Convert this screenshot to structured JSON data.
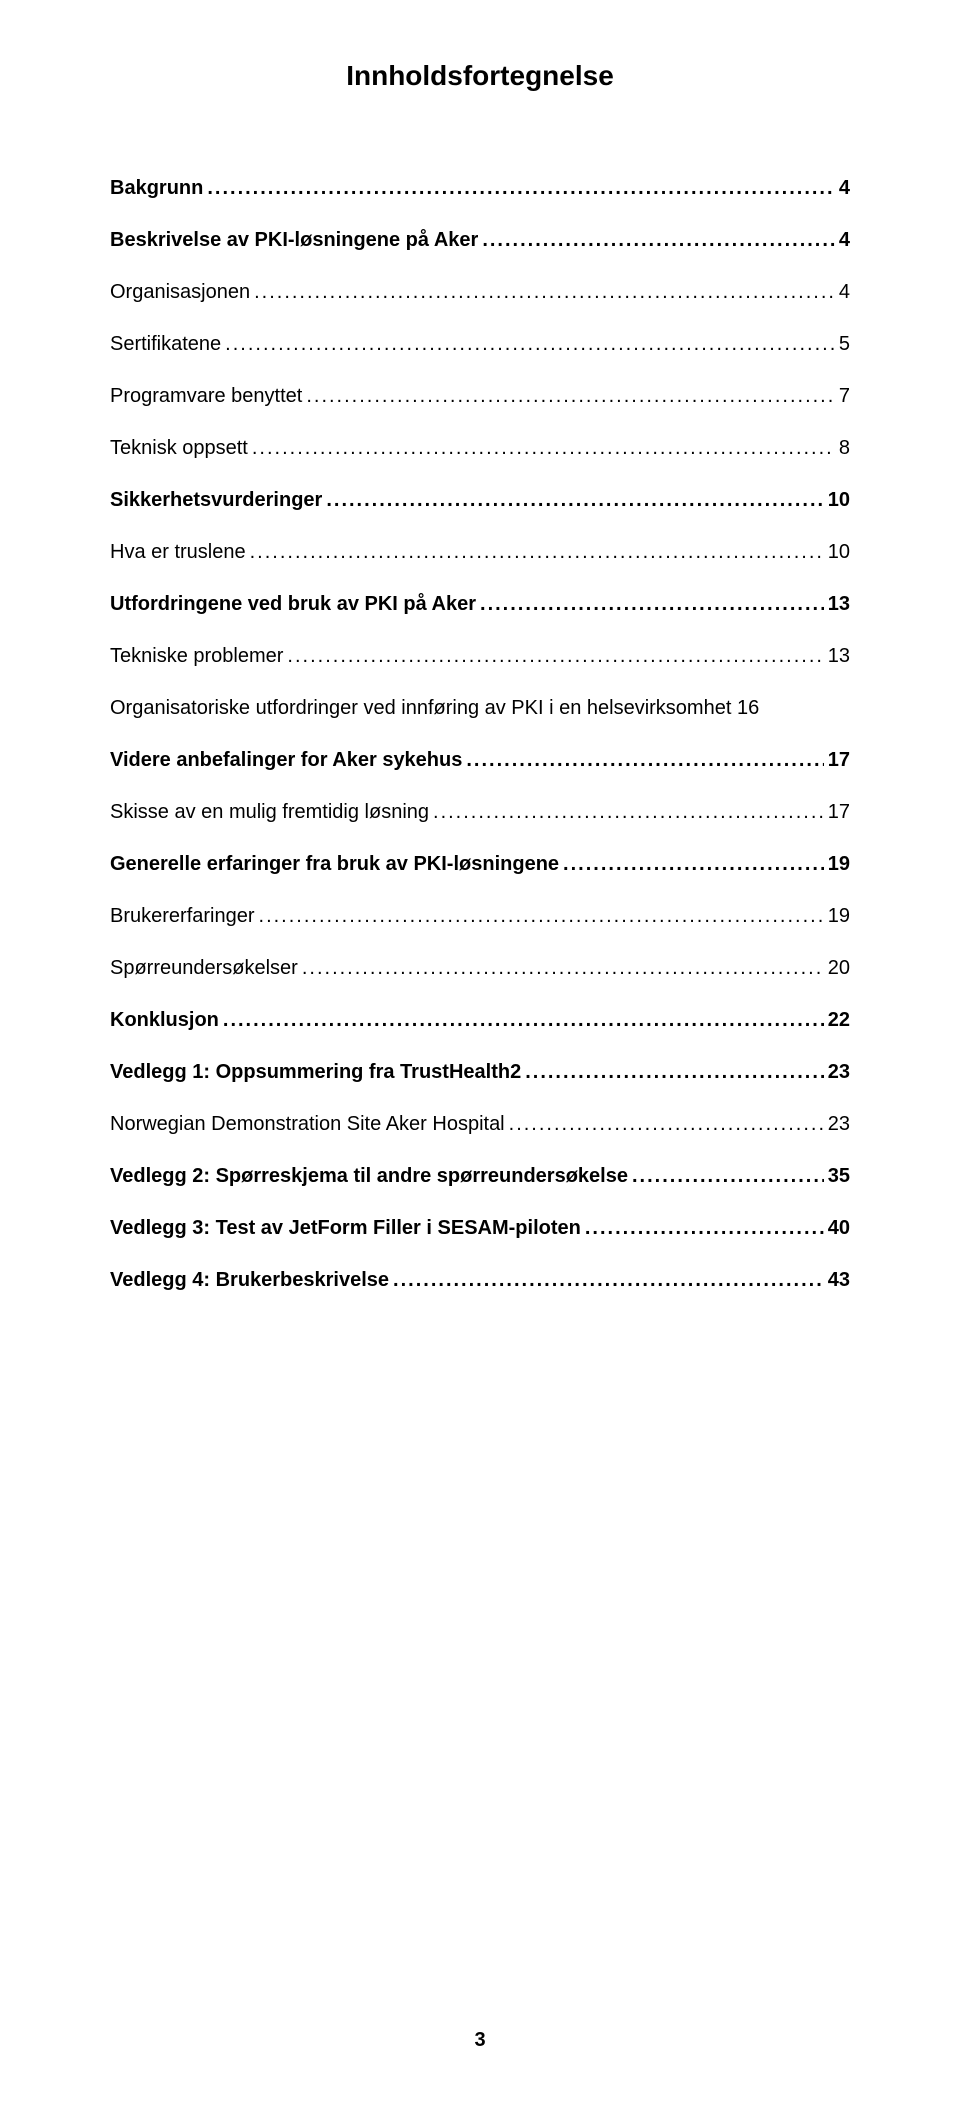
{
  "title": "Innholdsfortegnelse",
  "toc": [
    {
      "label": "Bakgrunn",
      "page": "4",
      "bold": true
    },
    {
      "label": "Beskrivelse av PKI-løsningene på Aker",
      "page": "4",
      "bold": true
    },
    {
      "label": "Organisasjonen",
      "page": "4",
      "bold": false
    },
    {
      "label": "Sertifikatene",
      "page": "5",
      "bold": false
    },
    {
      "label": "Programvare benyttet",
      "page": "7",
      "bold": false
    },
    {
      "label": "Teknisk oppsett",
      "page": "8",
      "bold": false
    },
    {
      "label": "Sikkerhetsvurderinger",
      "page": "10",
      "bold": true
    },
    {
      "label": "Hva er truslene",
      "page": "10",
      "bold": false
    },
    {
      "label": "Utfordringene ved bruk av PKI på Aker",
      "page": "13",
      "bold": true
    },
    {
      "label": "Tekniske problemer",
      "page": "13",
      "bold": false
    },
    {
      "label": "Organisatoriske utfordringer ved innføring av PKI i en helsevirksomhet",
      "page": "16",
      "bold": false,
      "nodots": true
    },
    {
      "label": "Videre anbefalinger for Aker sykehus",
      "page": "17",
      "bold": true
    },
    {
      "label": "Skisse av en mulig fremtidig løsning",
      "page": "17",
      "bold": false
    },
    {
      "label": "Generelle erfaringer fra bruk av PKI-løsningene",
      "page": "19",
      "bold": true
    },
    {
      "label": "Brukererfaringer",
      "page": "19",
      "bold": false
    },
    {
      "label": "Spørreundersøkelser",
      "page": "20",
      "bold": false
    },
    {
      "label": "Konklusjon",
      "page": "22",
      "bold": true
    },
    {
      "label": "Vedlegg 1: Oppsummering fra TrustHealth2",
      "page": "23",
      "bold": true
    },
    {
      "label": "Norwegian Demonstration Site Aker Hospital",
      "page": "23",
      "bold": false
    },
    {
      "label": "Vedlegg 2: Spørreskjema til andre spørreundersøkelse",
      "page": "35",
      "bold": true
    },
    {
      "label": "Vedlegg 3: Test av JetForm Filler i SESAM-piloten",
      "page": "40",
      "bold": true
    },
    {
      "label": "Vedlegg 4: Brukerbeskrivelse",
      "page": "43",
      "bold": true
    }
  ],
  "pageNumber": "3"
}
